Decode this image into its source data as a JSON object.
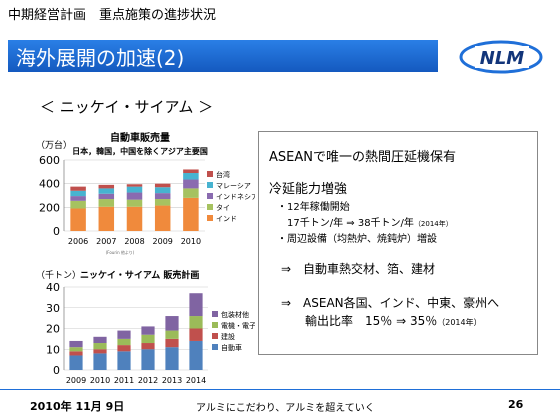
{
  "header": {
    "subtitle": "中期経営計画　重点施策の進捗状況",
    "title": "海外展開の加速(2)",
    "logo_text": "NLM"
  },
  "section_heading": "＜ ニッケイ・サイアム ＞",
  "chart1": {
    "unit": "（万台）",
    "title": "自動車販売量",
    "subtitle": "日本，韓国，中国を除くアジア主要国",
    "source": "(Fourin 他より)"
  },
  "chart2": {
    "unit": "（千トン）",
    "title": "ニッケイ・サイアム 販売計画"
  },
  "info": {
    "line1": "ASEANで唯一の熱間圧延機保有",
    "line2": "冷延能力増強",
    "line3": "・12年稼働開始",
    "line4a": "17千トン/年 ⇒ 38千トン/年",
    "line4b": "（2014年）",
    "line5": "・周辺設備（均熱炉、焼鈍炉）増設",
    "line6": "⇒　自動車熱交材、箔、建材",
    "line7": "⇒　ASEAN各国、インド、中東、豪州へ",
    "line8a": "輸出比率　15％ ⇒ 35％",
    "line8b": "（2014年）"
  },
  "footer": {
    "date": "2010年 11月 9日",
    "slogan": "アルミにこだわり、アルミを超えていく",
    "page": "26"
  },
  "chart_data": [
    {
      "type": "bar",
      "stacked": true,
      "title": "自動車販売量",
      "subtitle": "日本，韓国，中国を除くアジア主要国",
      "ylabel": "（万台）",
      "categories": [
        "2006",
        "2007",
        "2008",
        "2009",
        "2010"
      ],
      "ylim": [
        0,
        600
      ],
      "yticks": [
        0,
        200,
        400,
        600
      ],
      "legend": "right",
      "series": [
        {
          "name": "インド",
          "color": "#f08a3c",
          "values": [
            190,
            205,
            205,
            215,
            280
          ]
        },
        {
          "name": "タイ",
          "color": "#a6c260",
          "values": [
            65,
            65,
            60,
            55,
            80
          ]
        },
        {
          "name": "インドネシア",
          "color": "#8a6bb0",
          "values": [
            40,
            45,
            60,
            50,
            75
          ]
        },
        {
          "name": "マレーシア",
          "color": "#47b3d0",
          "values": [
            45,
            45,
            50,
            50,
            55
          ]
        },
        {
          "name": "台湾",
          "color": "#c0504d",
          "values": [
            35,
            30,
            20,
            30,
            30
          ]
        }
      ]
    },
    {
      "type": "bar",
      "stacked": true,
      "title": "ニッケイ・サイアム 販売計画",
      "ylabel": "（千トン）",
      "categories": [
        "2009",
        "2010",
        "2011",
        "2012",
        "2013",
        "2014"
      ],
      "ylim": [
        0,
        40
      ],
      "yticks": [
        0,
        10,
        20,
        30,
        40
      ],
      "legend": "right",
      "series": [
        {
          "name": "自動車",
          "color": "#4f81bd",
          "values": [
            7,
            8,
            9,
            10,
            11,
            14
          ]
        },
        {
          "name": "建設",
          "color": "#c0504d",
          "values": [
            2,
            2,
            3,
            3,
            4,
            6
          ]
        },
        {
          "name": "電機・電子",
          "color": "#9bbb59",
          "values": [
            2,
            3,
            3,
            4,
            4,
            6
          ]
        },
        {
          "name": "包装材他",
          "color": "#8064a2",
          "values": [
            3,
            3,
            4,
            4,
            7,
            11
          ]
        }
      ]
    }
  ]
}
